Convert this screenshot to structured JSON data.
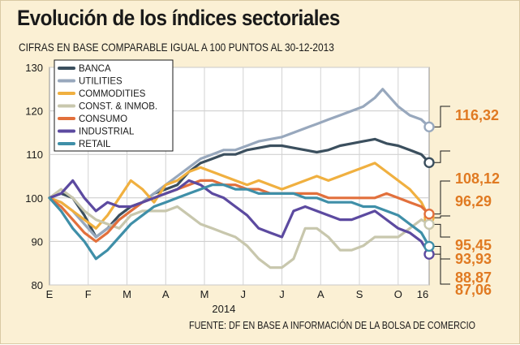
{
  "header": {
    "title": "Evolución de los índices sectoriales",
    "subtitle": "CIFRAS EN BASE COMPARABLE IGUAL A 100 PUNTOS AL 30-12-2013"
  },
  "footer": {
    "source": "FUENTE: DF EN BASE A INFORMACIÓN DE LA BOLSA DE COMERCIO"
  },
  "chart_data": {
    "type": "line",
    "title": "Evolución de los índices sectoriales",
    "subtitle": "CIFRAS EN BASE COMPARABLE IGUAL A 100 PUNTOS AL 30-12-2013",
    "year_label": "2014",
    "x_tick_labels": [
      "E",
      "F",
      "M",
      "A",
      "M",
      "J",
      "J",
      "A",
      "S",
      "O",
      "16"
    ],
    "y_ticks": [
      80,
      90,
      100,
      110,
      120,
      130
    ],
    "ylim": [
      80,
      130
    ],
    "grid": true,
    "legend_position": "top-left",
    "series": [
      {
        "name": "BANCA",
        "color": "#3b4f5e",
        "end_label": "108,12",
        "x": [
          0,
          0.3,
          0.6,
          0.9,
          1.2,
          1.5,
          1.8,
          2.1,
          2.4,
          2.7,
          3.0,
          3.3,
          3.6,
          3.9,
          4.2,
          4.5,
          4.8,
          5.1,
          5.4,
          5.7,
          6.0,
          6.3,
          6.6,
          6.9,
          7.2,
          7.5,
          7.8,
          8.1,
          8.4,
          8.7,
          9.0,
          9.3,
          9.6,
          9.8
        ],
        "values": [
          100,
          101,
          100,
          96,
          91,
          93,
          96,
          98,
          99,
          101,
          102,
          103,
          106,
          108,
          109,
          110,
          110,
          111,
          111.5,
          112,
          112,
          111.5,
          111,
          110.5,
          111,
          112,
          112.5,
          113,
          113.5,
          112.5,
          112,
          111,
          110,
          108.12
        ]
      },
      {
        "name": "UTILITIES",
        "color": "#98a8bd",
        "end_label": "116,32",
        "x": [
          0,
          0.3,
          0.6,
          0.9,
          1.2,
          1.5,
          1.8,
          2.1,
          2.4,
          2.7,
          3.0,
          3.3,
          3.6,
          3.9,
          4.2,
          4.5,
          4.8,
          5.1,
          5.4,
          5.7,
          6.0,
          6.3,
          6.6,
          6.9,
          7.2,
          7.5,
          7.8,
          8.1,
          8.4,
          8.6,
          8.8,
          9.0,
          9.3,
          9.6,
          9.8
        ],
        "values": [
          100,
          99,
          97,
          94,
          91,
          93,
          95,
          97,
          99,
          101,
          103,
          105,
          107,
          109,
          110,
          111,
          111,
          112,
          113,
          113.5,
          114,
          115,
          116,
          117,
          118,
          119,
          120,
          121,
          123,
          125,
          123,
          121,
          119,
          118,
          116.32
        ]
      },
      {
        "name": "COMMODITIES",
        "color": "#f0b040",
        "end_label": "95,45",
        "x": [
          0,
          0.3,
          0.6,
          0.9,
          1.2,
          1.5,
          1.8,
          2.1,
          2.4,
          2.7,
          3.0,
          3.3,
          3.6,
          3.9,
          4.2,
          4.5,
          4.8,
          5.1,
          5.4,
          5.7,
          6.0,
          6.3,
          6.6,
          6.9,
          7.2,
          7.5,
          7.8,
          8.1,
          8.4,
          8.7,
          9.0,
          9.3,
          9.6,
          9.8
        ],
        "values": [
          100,
          99,
          97,
          95,
          93,
          96,
          100,
          104,
          102,
          99,
          103,
          104,
          106,
          107,
          106,
          105,
          104,
          103,
          104,
          103,
          102,
          103,
          104,
          105,
          104,
          105,
          106,
          107,
          108,
          106,
          104,
          102,
          99,
          95.45
        ]
      },
      {
        "name": "CONST. & INMOB.",
        "color": "#c8c7ad",
        "end_label": "93,93",
        "x": [
          0,
          0.3,
          0.6,
          0.9,
          1.2,
          1.5,
          1.8,
          2.1,
          2.4,
          2.7,
          3.0,
          3.3,
          3.6,
          3.9,
          4.2,
          4.5,
          4.8,
          5.1,
          5.4,
          5.7,
          6.0,
          6.3,
          6.6,
          6.9,
          7.2,
          7.5,
          7.8,
          8.1,
          8.4,
          8.7,
          9.0,
          9.3,
          9.6,
          9.8
        ],
        "values": [
          100,
          102,
          100,
          97,
          95,
          94,
          93,
          96,
          97,
          97,
          97,
          98,
          96,
          94,
          93,
          92,
          91,
          89,
          86,
          84,
          84,
          86,
          93,
          93,
          91,
          88,
          88,
          89,
          91,
          91,
          91,
          93,
          95,
          93.93
        ]
      },
      {
        "name": "CONSUMO",
        "color": "#e2703c",
        "end_label": "96,29",
        "x": [
          0,
          0.3,
          0.6,
          0.9,
          1.2,
          1.5,
          1.8,
          2.1,
          2.4,
          2.7,
          3.0,
          3.3,
          3.6,
          3.9,
          4.2,
          4.5,
          4.8,
          5.1,
          5.4,
          5.7,
          6.0,
          6.3,
          6.6,
          6.9,
          7.2,
          7.5,
          7.8,
          8.1,
          8.4,
          8.7,
          9.0,
          9.3,
          9.6,
          9.8
        ],
        "values": [
          100,
          98,
          95,
          92,
          90,
          92,
          95,
          97,
          99,
          100,
          101,
          102,
          103,
          104,
          104,
          103,
          103,
          102,
          102,
          101,
          101,
          101,
          101,
          101,
          100,
          100,
          100,
          100,
          100,
          101,
          100,
          99,
          98,
          96.29
        ]
      },
      {
        "name": "INDUSTRIAL",
        "color": "#5c4aa0",
        "end_label": "87,06",
        "x": [
          0,
          0.3,
          0.6,
          0.9,
          1.2,
          1.5,
          1.8,
          2.1,
          2.4,
          2.7,
          3.0,
          3.3,
          3.6,
          3.9,
          4.2,
          4.5,
          4.8,
          5.1,
          5.4,
          5.7,
          6.0,
          6.3,
          6.6,
          6.9,
          7.2,
          7.5,
          7.8,
          8.1,
          8.4,
          8.7,
          9.0,
          9.3,
          9.6,
          9.8
        ],
        "values": [
          100,
          101,
          104,
          100,
          97,
          99,
          98,
          98,
          99,
          100,
          101,
          102,
          104,
          103,
          101,
          100,
          98,
          96,
          93,
          92,
          91,
          97,
          98,
          97,
          96,
          95,
          95,
          96,
          97,
          95,
          93,
          92,
          90,
          87.06
        ]
      },
      {
        "name": "RETAIL",
        "color": "#3f8fa8",
        "end_label": "88,87",
        "x": [
          0,
          0.3,
          0.6,
          0.9,
          1.2,
          1.5,
          1.8,
          2.1,
          2.4,
          2.7,
          3.0,
          3.3,
          3.6,
          3.9,
          4.2,
          4.5,
          4.8,
          5.1,
          5.4,
          5.7,
          6.0,
          6.3,
          6.6,
          6.9,
          7.2,
          7.5,
          7.8,
          8.1,
          8.4,
          8.7,
          9.0,
          9.3,
          9.6,
          9.8
        ],
        "values": [
          100,
          97,
          93,
          90,
          86,
          88,
          91,
          94,
          96,
          98,
          99,
          100,
          101,
          102,
          103,
          103,
          102,
          102,
          101,
          101,
          101,
          101,
          100,
          100,
          99,
          99,
          99,
          98,
          98,
          97,
          96,
          94,
          92,
          88.87
        ]
      }
    ]
  }
}
